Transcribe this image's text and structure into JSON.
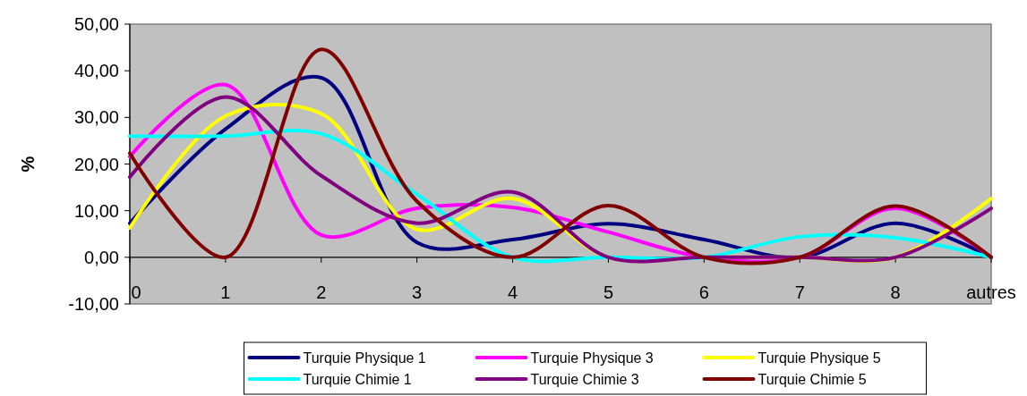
{
  "chart_data": {
    "type": "line",
    "ylabel": "%",
    "categories": [
      "0",
      "1",
      "2",
      "3",
      "4",
      "5",
      "6",
      "7",
      "8",
      "autres"
    ],
    "series": [
      {
        "name": "Turquie Physique 1",
        "color": "#000080",
        "values": [
          7.3,
          27.5,
          38.5,
          3.2,
          3.8,
          7.2,
          3.8,
          0,
          7.3,
          0
        ]
      },
      {
        "name": "Turquie Physique 3",
        "color": "#ff00ff",
        "values": [
          21.6,
          37,
          4.8,
          10.5,
          10.7,
          5.4,
          0,
          0,
          10.5,
          0
        ]
      },
      {
        "name": "Turquie Physique 5",
        "color": "#ffff00",
        "values": [
          6.3,
          30.3,
          30.8,
          6,
          12.6,
          0,
          0,
          0,
          0,
          12.6
        ]
      },
      {
        "name": "Turquie Chimie 1",
        "color": "#00ffff",
        "values": [
          26,
          26,
          26.5,
          13.5,
          0,
          0,
          0,
          4.4,
          4.2,
          0
        ]
      },
      {
        "name": "Turquie Chimie 3",
        "color": "#800080",
        "values": [
          17.2,
          34.4,
          17.5,
          7.3,
          14,
          0,
          0,
          0,
          0,
          10.5
        ]
      },
      {
        "name": "Turquie Chimie 5",
        "color": "#800000",
        "values": [
          22.3,
          0,
          44.6,
          12,
          0,
          11.1,
          0,
          0,
          11,
          0
        ]
      }
    ],
    "ylim": [
      -10,
      50
    ],
    "yticks": [
      {
        "value": -10,
        "label": "-10,00"
      },
      {
        "value": 0,
        "label": "0,00"
      },
      {
        "value": 10,
        "label": "10,00"
      },
      {
        "value": 20,
        "label": "20,00"
      },
      {
        "value": 30,
        "label": "30,00"
      },
      {
        "value": 40,
        "label": "40,00"
      },
      {
        "value": 50,
        "label": "50,00"
      }
    ],
    "legend": "bottom",
    "marker": "none",
    "line_style": "solid"
  }
}
